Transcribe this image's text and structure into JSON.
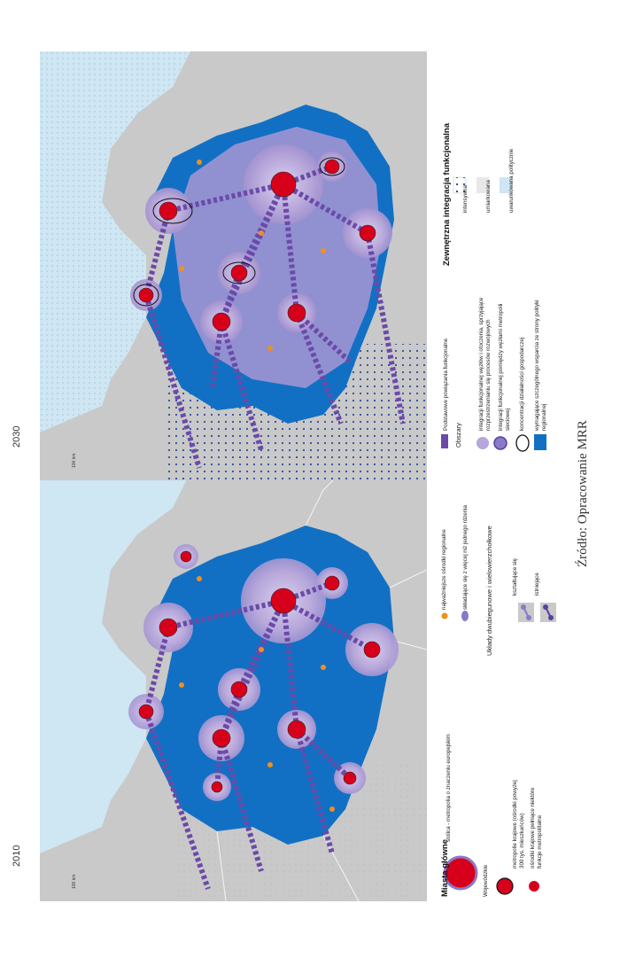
{
  "maps": [
    {
      "year_label": "2010"
    },
    {
      "year_label": "2030"
    }
  ],
  "scale_label": "100 km",
  "legend_left": {
    "title": "Miasta główne",
    "capital": "stolica - metropolia o znaczeniu europejskim",
    "voivodeship_label": "Wojewódzkie",
    "metro_line1": "metropolie krajowe (ośrodki powyżej",
    "metro_line2": "300 tys. mieszkańców)",
    "regional_line1": "ośrodki krajowe pełniące niektóre",
    "regional_line2": "funkcje metropolitalne",
    "regional_small": "najważniejsze ośrodki regionalne",
    "multi_center": "składające się z więcej niż jednego rdzenia",
    "systems_title": "Układy dwubiegunowe i wielowierzchołkowe",
    "forming": "kształtujące się",
    "existing": "istniejące"
  },
  "legend_right": {
    "basic_links": "Podstawowe powiązania funkcjonalne",
    "areas_title": "Obszary",
    "area1_line1": "integracji funkcjonalnej węzłów i otoczenia, sprzyjające",
    "area1_line2": "rozprzestrzenianiu się procesów rozwojowych",
    "area2_line1": "integracji funkcjonalnej pomiędzy węzłami metropolii",
    "area2_line2": "sieciowej",
    "area3": "koncentracji działalności gospodarczej",
    "area4_line1": "wymagające szczególnego wsparcia ze strony polityki",
    "area4_line2": "regionalnej",
    "external_title": "Zewnętrzna integracja funkcjonalna",
    "ext1": "intensywna",
    "ext2": "umiarkowana",
    "ext3": "uwarunkowana politycznie"
  },
  "source": "Źródło: Opracowanie MRR",
  "colors": {
    "land_outside": "#c9c9c9",
    "sea": "#cfe6f3",
    "poland": "#1270c4",
    "city_red": "#d7001a",
    "halo": "#b9a9d9",
    "link": "#6a4aa8",
    "orange": "#f0901e",
    "dot_blue": "#1c3f98"
  }
}
